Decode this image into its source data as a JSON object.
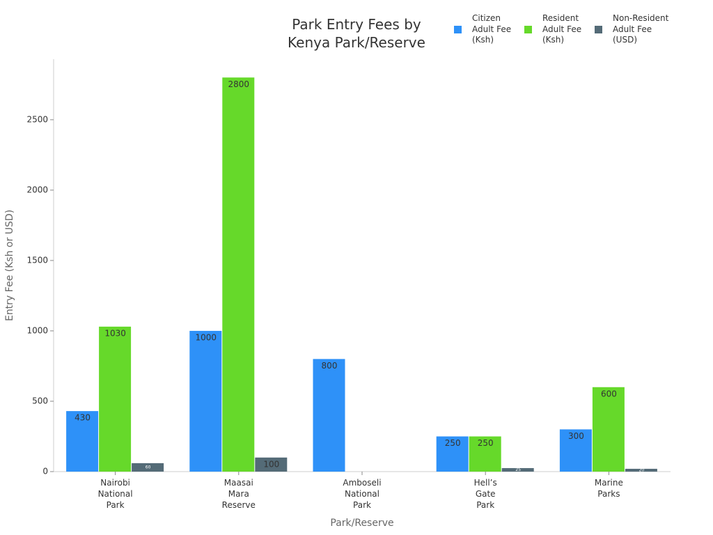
{
  "chart_data": {
    "type": "bar",
    "title": "Park Entry Fees by\nKenya Park/Reserve",
    "x_label": "Park/Reserve",
    "y_label": "Entry Fee (Ksh or USD)",
    "categories": [
      "Nairobi\nNational\nPark",
      "Maasai\nMara\nReserve",
      "Amboseli\nNational\nPark",
      "Hell’s\nGate\nPark",
      "Marine\nParks"
    ],
    "series": [
      {
        "name": "Citizen\nAdult Fee\n(Ksh)",
        "color": "#2e91f8",
        "values": [
          430,
          1000,
          800,
          250,
          300
        ]
      },
      {
        "name": "Resident\nAdult Fee\n(Ksh)",
        "color": "#66d92a",
        "values": [
          1030,
          2800,
          null,
          250,
          600
        ]
      },
      {
        "name": "Non-Resident\nAdult Fee\n(USD)",
        "color": "#546b77",
        "values": [
          60,
          100,
          null,
          25,
          20
        ]
      }
    ],
    "ylim": [
      0,
      2930
    ],
    "yticks": [
      0,
      500,
      1000,
      1500,
      2000,
      2500
    ],
    "grid": false,
    "legend": "top-right"
  }
}
